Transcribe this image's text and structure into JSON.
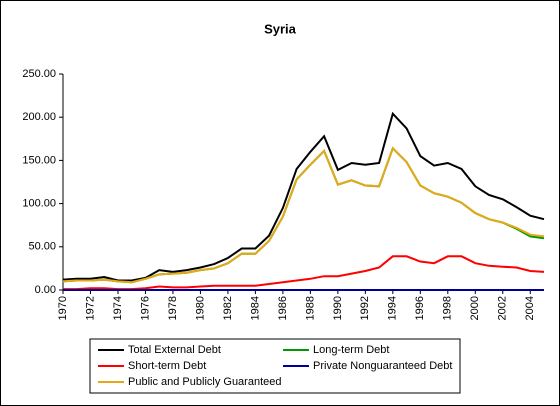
{
  "chart_data": {
    "type": "line",
    "title": "Syria",
    "x": [
      1970,
      1971,
      1972,
      1973,
      1974,
      1975,
      1976,
      1977,
      1978,
      1979,
      1980,
      1981,
      1982,
      1983,
      1984,
      1985,
      1986,
      1987,
      1988,
      1989,
      1990,
      1991,
      1992,
      1993,
      1994,
      1995,
      1996,
      1997,
      1998,
      1999,
      2000,
      2001,
      2002,
      2003,
      2004,
      2005
    ],
    "xlim": [
      1970,
      2005
    ],
    "xticks": [
      1970,
      1972,
      1974,
      1976,
      1978,
      1980,
      1982,
      1984,
      1986,
      1988,
      1990,
      1992,
      1994,
      1996,
      1998,
      2000,
      2002,
      2004
    ],
    "ylim": [
      0,
      250
    ],
    "yticks": [
      {
        "value": 0,
        "label": "0.00"
      },
      {
        "value": 50,
        "label": "50.00"
      },
      {
        "value": 100,
        "label": "100.00"
      },
      {
        "value": 150,
        "label": "150.00"
      },
      {
        "value": 200,
        "label": "200.00"
      },
      {
        "value": 250,
        "label": "250.00"
      }
    ],
    "legend": "bottom",
    "series": [
      {
        "name": "Total External Debt",
        "color": "#000000",
        "values": [
          12,
          13,
          13,
          15,
          11,
          11,
          14,
          23,
          21,
          23,
          26,
          30,
          37,
          48,
          48,
          63,
          95,
          140,
          160,
          178,
          139,
          147,
          145,
          147,
          204,
          187,
          155,
          144,
          147,
          140,
          120,
          110,
          105,
          96,
          86,
          82
        ]
      },
      {
        "name": "Long-term Debt",
        "color": "#009900",
        "values": [
          10,
          11,
          11,
          12,
          10,
          9,
          13,
          18,
          19,
          20,
          23,
          25,
          31,
          42,
          42,
          57,
          85,
          128,
          145,
          161,
          122,
          127,
          121,
          120,
          164,
          148,
          121,
          112,
          108,
          101,
          89,
          82,
          78,
          71,
          62,
          60
        ]
      },
      {
        "name": "Short-term Debt",
        "color": "#ff0000",
        "values": [
          1,
          1,
          2,
          2,
          1,
          1,
          2,
          4,
          3,
          3,
          4,
          5,
          5,
          5,
          5,
          7,
          9,
          11,
          13,
          16,
          16,
          19,
          22,
          26,
          39,
          39,
          33,
          31,
          39,
          39,
          31,
          28,
          27,
          26,
          22,
          21
        ]
      },
      {
        "name": "Private Nonguaranteed Debt",
        "color": "#000099",
        "values": [
          0,
          0,
          0,
          0,
          0,
          0,
          0,
          0,
          0,
          0,
          0,
          0,
          0,
          0,
          0,
          0,
          0,
          0,
          0,
          0,
          0,
          0,
          0,
          0,
          0,
          0,
          0,
          0,
          0,
          0,
          0,
          0,
          0,
          0,
          0,
          0
        ]
      },
      {
        "name": "Public and Publicly Guaranteed",
        "color": "#e6a817",
        "values": [
          10,
          11,
          11,
          12,
          10,
          9,
          13,
          18,
          19,
          20,
          23,
          25,
          31,
          42,
          42,
          57,
          85,
          128,
          145,
          161,
          122,
          127,
          121,
          120,
          164,
          148,
          121,
          112,
          108,
          101,
          89,
          82,
          78,
          72,
          64,
          62
        ]
      }
    ]
  }
}
